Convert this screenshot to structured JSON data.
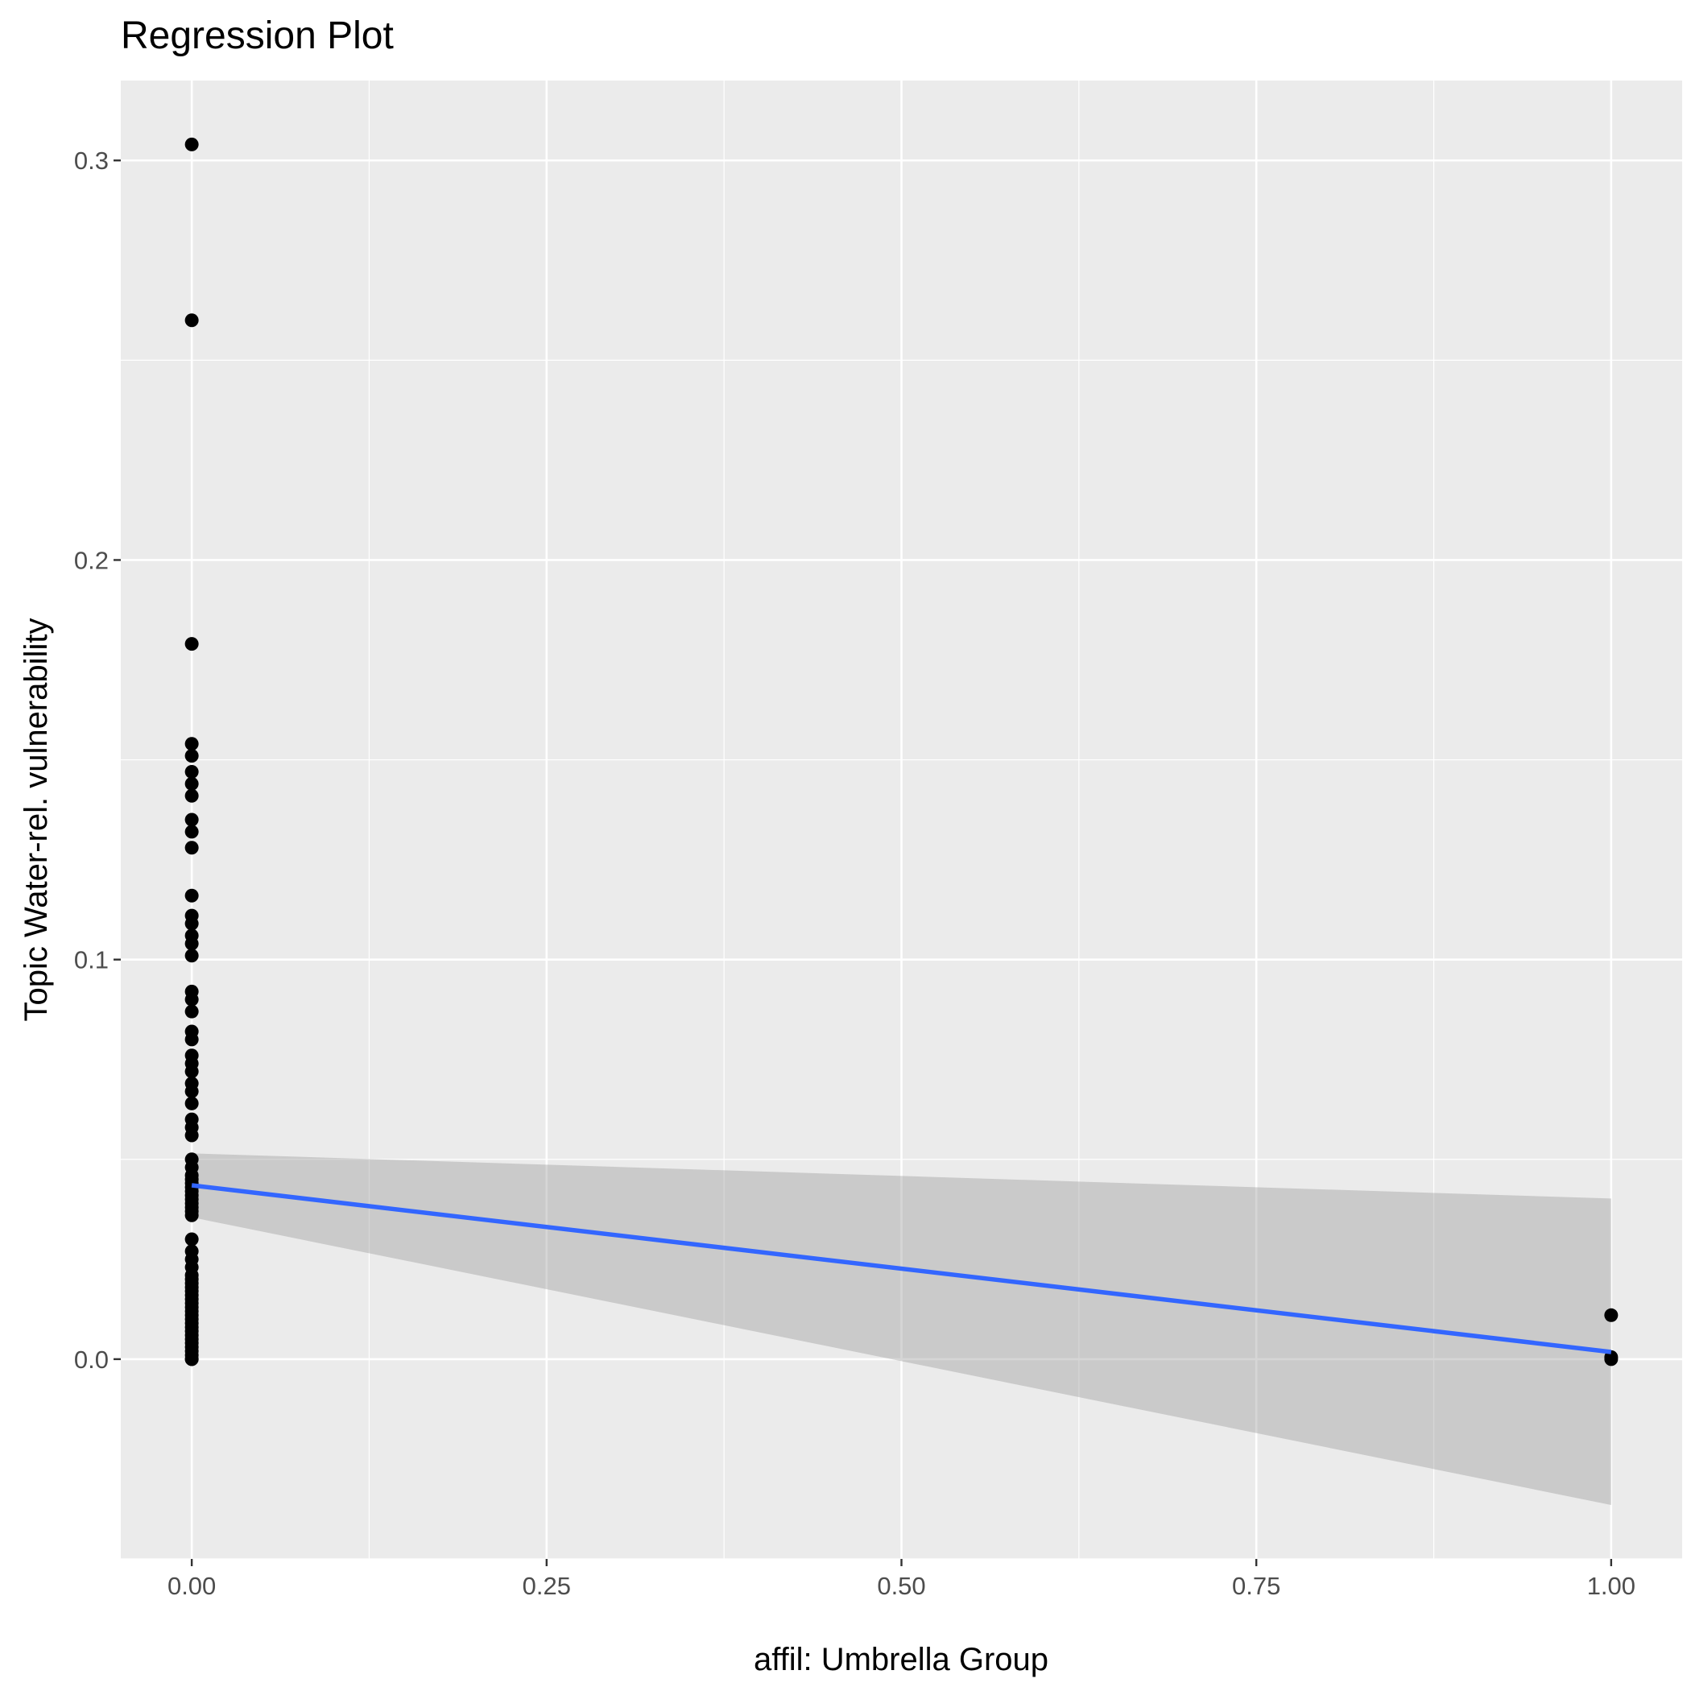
{
  "chart_data": {
    "type": "scatter",
    "title": "Regression Plot",
    "xlabel": "affil: Umbrella Group",
    "ylabel": "Topic Water-rel. vulnerability",
    "xlim": [
      -0.05,
      1.05
    ],
    "ylim": [
      -0.05,
      0.32
    ],
    "x_ticks": [
      0.0,
      0.25,
      0.5,
      0.75,
      1.0
    ],
    "x_tick_labels": [
      "0.00",
      "0.25",
      "0.50",
      "0.75",
      "1.00"
    ],
    "x_minor_ticks": [
      0.125,
      0.375,
      0.625,
      0.875
    ],
    "y_ticks": [
      0.0,
      0.1,
      0.2,
      0.3
    ],
    "y_tick_labels": [
      "0.0",
      "0.1",
      "0.2",
      "0.3"
    ],
    "y_minor_ticks": [
      -0.05,
      0.05,
      0.15,
      0.25
    ],
    "grid": true,
    "points": {
      "x": [
        0,
        0,
        0,
        0,
        0,
        0,
        0,
        0,
        0,
        0,
        0,
        0,
        0,
        0,
        0,
        0,
        0,
        0,
        0,
        0,
        0,
        0,
        0,
        0,
        0,
        0,
        0,
        0,
        0,
        0,
        0,
        0,
        0,
        0,
        0,
        0,
        0,
        0,
        0,
        0,
        0,
        0,
        0,
        0,
        0,
        0,
        0,
        0,
        0,
        0,
        0,
        0,
        0,
        0,
        0,
        0,
        0,
        0,
        0,
        0,
        0,
        0,
        0,
        0,
        0,
        0,
        0,
        0,
        0,
        0,
        0,
        1,
        1,
        1
      ],
      "y": [
        0.304,
        0.26,
        0.179,
        0.154,
        0.151,
        0.147,
        0.144,
        0.141,
        0.135,
        0.132,
        0.128,
        0.116,
        0.111,
        0.109,
        0.106,
        0.104,
        0.101,
        0.092,
        0.09,
        0.087,
        0.082,
        0.08,
        0.076,
        0.074,
        0.072,
        0.069,
        0.067,
        0.064,
        0.06,
        0.058,
        0.056,
        0.05,
        0.048,
        0.046,
        0.045,
        0.044,
        0.043,
        0.042,
        0.041,
        0.04,
        0.039,
        0.038,
        0.037,
        0.036,
        0.03,
        0.027,
        0.025,
        0.023,
        0.02,
        0.018,
        0.016,
        0.014,
        0.013,
        0.012,
        0.011,
        0.01,
        0.008,
        0.006,
        0.005,
        0.004,
        0.002,
        0.001,
        0.0,
        0.0,
        0.021,
        0.019,
        0.017,
        0.015,
        0.009,
        0.007,
        0.003,
        0.011,
        0.0005,
        0.0
      ]
    },
    "regression": {
      "x": [
        0,
        1
      ],
      "y": [
        0.0435,
        0.0018
      ],
      "ci_lower": [
        0.0355,
        -0.0365
      ],
      "ci_upper": [
        0.0515,
        0.0402
      ]
    },
    "colors": {
      "panel": "#ebebeb",
      "grid_major": "#ffffff",
      "points": "#000000",
      "line": "#3366ff",
      "ribbon": "#999999",
      "tick_text": "#4d4d4d",
      "tick_mark": "#333333"
    }
  }
}
